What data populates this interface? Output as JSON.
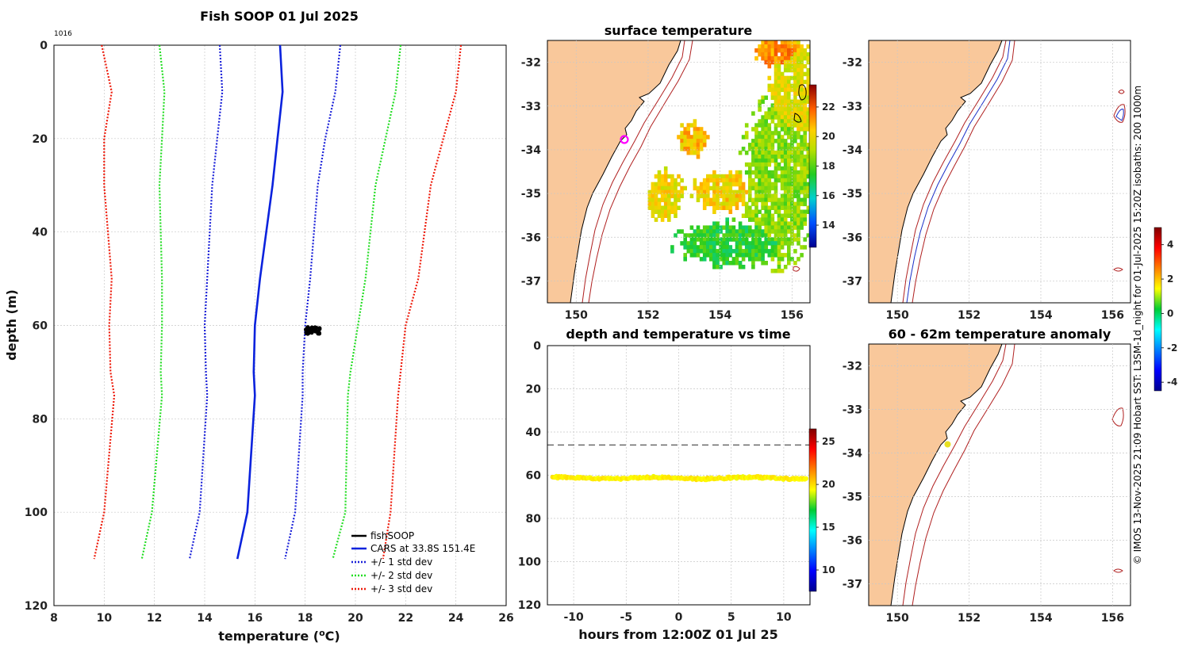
{
  "colors": {
    "land": "#f9c89b",
    "cars": "#0a22dd",
    "std1": "#1a20d8",
    "std2": "#22dd22",
    "std3": "#ee1a0a",
    "fish": "#000000",
    "isobath": "#b02020",
    "grid": "#c8c8c8",
    "marker": "#ff00ff",
    "point": "#e8e020"
  },
  "profile": {
    "title": "Fish SOOP 01 Jul 2025",
    "id_label": "1016",
    "xlabel": "temperature (",
    "xlabel_sup": "o",
    "xlabel_end": "C)",
    "ylabel": "depth (m)",
    "xticks": [
      "8",
      "10",
      "12",
      "14",
      "16",
      "18",
      "20",
      "22",
      "24",
      "26"
    ],
    "yticks": [
      "0",
      "20",
      "40",
      "60",
      "80",
      "100",
      "120"
    ]
  },
  "legend": {
    "fish": "fishSOOP",
    "cars": "CARS at 33.8S 151.4E",
    "std1": "+/- 1 std dev",
    "std2": "+/- 2 std dev",
    "std3": "+/- 3 std dev"
  },
  "sst_map": {
    "title": "surface temperature",
    "lat_ticks": [
      "-32",
      "-33",
      "-34",
      "-35",
      "-36",
      "-37"
    ],
    "lon_ticks": [
      "150",
      "152",
      "154",
      "156"
    ],
    "cbar_ticks": [
      "22",
      "20",
      "18",
      "16",
      "14"
    ]
  },
  "iso_map": {
    "lat_ticks": [
      "-32",
      "-33",
      "-34",
      "-35",
      "-36",
      "-37"
    ],
    "lon_ticks": [
      "150",
      "152",
      "154",
      "156"
    ]
  },
  "anom_map": {
    "title": "60 - 62m temperature anomaly",
    "lat_ticks": [
      "-32",
      "-33",
      "-34",
      "-35",
      "-36",
      "-37"
    ],
    "lon_ticks": [
      "150",
      "152",
      "154",
      "156"
    ],
    "cbar_ticks": [
      "4",
      "2",
      "0",
      "-2",
      "-4"
    ]
  },
  "timeseries": {
    "title": "depth and temperature vs time",
    "xlabel": "hours from 12:00Z 01 Jul 25",
    "xticks": [
      "-10",
      "-5",
      "0",
      "5",
      "10"
    ],
    "yticks": [
      "0",
      "20",
      "40",
      "60",
      "80",
      "100",
      "120"
    ],
    "cbar_ticks": [
      "25",
      "20",
      "15",
      "10"
    ]
  },
  "credit": "© IMOS 13-Nov-2025 21:09 Hobart SST: L3SM-1d_night for 01-Jul-2025 15:20Z isobaths: 200  1000m",
  "chart_data": [
    {
      "type": "line",
      "title": "Fish SOOP 01 Jul 2025",
      "xlabel": "temperature (oC)",
      "ylabel": "depth (m)",
      "xlim": [
        8,
        26
      ],
      "ylim": [
        120,
        0
      ],
      "depths": [
        0,
        10,
        20,
        30,
        50,
        60,
        70,
        75,
        100,
        110
      ],
      "series": [
        {
          "name": "CARS at 33.8S 151.4E",
          "key": "cars",
          "style": "solid",
          "values": [
            17.0,
            17.1,
            16.9,
            16.7,
            16.2,
            16.0,
            15.95,
            16.0,
            15.7,
            15.3
          ]
        },
        {
          "name": "+1 std dev",
          "key": "std1",
          "style": "dotted",
          "values": [
            19.4,
            19.2,
            18.8,
            18.5,
            18.2,
            18.0,
            17.9,
            17.9,
            17.6,
            17.2
          ]
        },
        {
          "name": "-1 std dev",
          "key": "std1",
          "style": "dotted",
          "values": [
            14.6,
            14.7,
            14.5,
            14.3,
            14.1,
            14.0,
            14.05,
            14.1,
            13.8,
            13.4
          ]
        },
        {
          "name": "+2 std dev",
          "key": "std2",
          "style": "dotted",
          "values": [
            21.8,
            21.6,
            21.2,
            20.8,
            20.4,
            20.1,
            19.8,
            19.7,
            19.6,
            19.1
          ]
        },
        {
          "name": "-2 std dev",
          "key": "std2",
          "style": "dotted",
          "values": [
            12.2,
            12.4,
            12.3,
            12.2,
            12.3,
            12.3,
            12.25,
            12.3,
            11.9,
            11.5
          ]
        },
        {
          "name": "+3 std dev",
          "key": "std3",
          "style": "dotted",
          "values": [
            24.2,
            24.0,
            23.5,
            23.0,
            22.5,
            22.0,
            21.8,
            21.7,
            21.4,
            21.1
          ]
        },
        {
          "name": "-3 std dev",
          "key": "std3",
          "style": "dotted",
          "values": [
            9.9,
            10.3,
            10.0,
            10.0,
            10.3,
            10.2,
            10.25,
            10.4,
            10.0,
            9.6
          ]
        }
      ],
      "fishSOOP": {
        "name": "fishSOOP",
        "temp_range": [
          18.0,
          18.6
        ],
        "depth_range": [
          60.3,
          61.8
        ]
      }
    },
    {
      "type": "heatmap",
      "title": "surface temperature",
      "lon_range": [
        149.2,
        156.5
      ],
      "lat_range": [
        -37.5,
        -31.5
      ],
      "colorbar_range": [
        12.5,
        23.5
      ],
      "station": {
        "lon": 151.4,
        "lat": -33.8
      }
    },
    {
      "type": "heatmap",
      "title": "60 - 62m temperature anomaly",
      "lon_range": [
        149.2,
        156.5
      ],
      "lat_range": [
        -37.5,
        -31.5
      ],
      "colorbar_range": [
        -4.5,
        5.0
      ],
      "station": {
        "lon": 151.4,
        "lat": -33.8,
        "anomaly": 2.2
      }
    },
    {
      "type": "scatter",
      "title": "depth and temperature vs time",
      "xlabel": "hours from 12:00Z 01 Jul 25",
      "xlim": [
        -12.5,
        12.5
      ],
      "ylim": [
        120,
        0
      ],
      "reference_depth": 46,
      "depth_mean": 61.3,
      "temperature": 19.6,
      "colorbar_range": [
        7.5,
        26.5
      ]
    }
  ]
}
